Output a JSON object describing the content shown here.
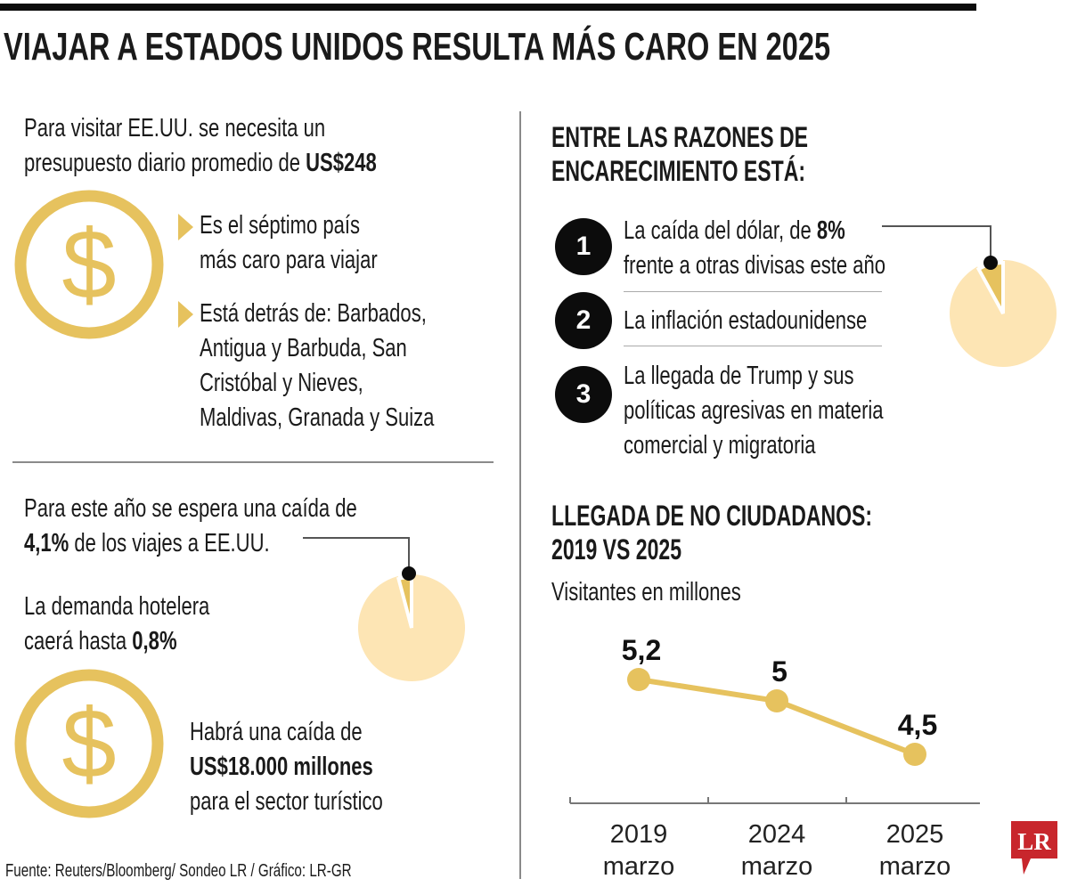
{
  "title": "VIAJAR A ESTADOS UNIDOS RESULTA MÁS CARO EN 2025",
  "colors": {
    "gold": "#E6C25E",
    "light_gold": "#FDE5B4",
    "black": "#0c0c0c",
    "logo_red": "#C8262C"
  },
  "left": {
    "budget_line1": "Para visitar EE.UU. se necesita un",
    "budget_line2_pre": "presupuesto diario promedio de ",
    "budget_amount": "US$248",
    "icon": "dollar-circle-icon",
    "bullet1": [
      "Es el séptimo país",
      "más caro para viajar"
    ],
    "bullet2": [
      "Está detrás de: Barbados,",
      "Antigua y Barbuda, San",
      "Cristóbal y Nieves,",
      "Maldivas, Granada y Suiza"
    ],
    "drop_line1": "Para este año se espera una caída de",
    "drop_pct": "4,1%",
    "drop_line2_post": " de los viajes a EE.UU.",
    "hotel_line1": "La demanda hotelera",
    "hotel_line2_pre": "caerá hasta ",
    "hotel_pct": "0,8%",
    "loss_line1": "Habrá una caída de",
    "loss_amount": "US$18.000 millones",
    "loss_line3": "para el sector turístico",
    "source": "Fuente: Reuters/Bloomberg/ Sondeo LR / Gráfico: LR-GR"
  },
  "right": {
    "reasons_title": [
      "ENTRE LAS RAZONES DE",
      "ENCARECIMIENTO ESTÁ:"
    ],
    "reasons": [
      {
        "num": "1",
        "lines": [
          "La caída del dólar, de ",
          "frente a otras divisas este año"
        ],
        "bold": "8%"
      },
      {
        "num": "2",
        "lines": [
          "La inflación estadounidense"
        ]
      },
      {
        "num": "3",
        "lines": [
          "La llegada de Trump y sus",
          "políticas agresivas en materia",
          "comercial y migratoria"
        ]
      }
    ],
    "chart_title": [
      "LLEGADA DE NO CIUDADANOS:",
      "2019 VS 2025"
    ],
    "chart_unit": "Visitantes en millones",
    "logo": "LR"
  },
  "chart_data": [
    {
      "type": "line",
      "title": "LLEGADA DE NO CIUDADANOS: 2019 VS 2025",
      "ylabel": "Visitantes en millones",
      "categories": [
        [
          "2019",
          "marzo"
        ],
        [
          "2024",
          "marzo"
        ],
        [
          "2025",
          "marzo"
        ]
      ],
      "values": [
        5.2,
        5,
        4.5
      ],
      "data_labels": [
        "5,2",
        "5",
        "4,5"
      ],
      "grid": false
    },
    {
      "type": "pie",
      "values": [
        4.1,
        95.9
      ],
      "label": "4,1%"
    },
    {
      "type": "pie",
      "values": [
        8,
        92
      ],
      "label": "8%"
    }
  ]
}
